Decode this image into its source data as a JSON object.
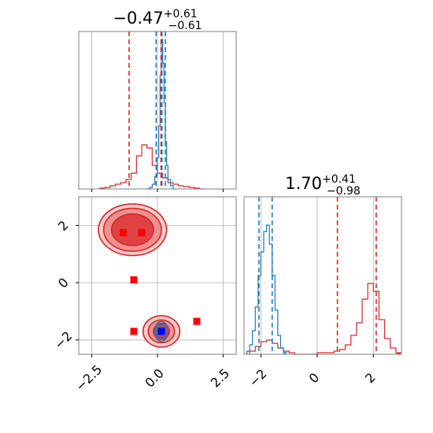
{
  "colors": {
    "series_a": "#d62728",
    "series_b": "#1f77b4",
    "grid": "#b0b0b0",
    "axes": "#7f7f7f"
  },
  "chart_data": [
    {
      "type": "line",
      "panel": "top-left",
      "title_main": "−0.47",
      "title_sup": "+0.61",
      "title_sub": "−0.61",
      "xlim": [
        -3.0,
        3.0
      ],
      "ylim": [
        0,
        1
      ],
      "grid": true,
      "xticks": [
        -2.5,
        0.0,
        2.5
      ],
      "xtick_labels_shown": false,
      "series": [
        {
          "color": "#d62728",
          "style": "step",
          "x": [
            -2.2,
            -2.0,
            -1.8,
            -1.6,
            -1.4,
            -1.2,
            -1.0,
            -0.8,
            -0.6,
            -0.4,
            -0.2,
            0.0,
            0.2,
            0.4,
            0.6,
            0.8,
            1.0,
            1.2,
            1.4,
            1.6
          ],
          "y": [
            0.005,
            0.01,
            0.02,
            0.03,
            0.04,
            0.06,
            0.1,
            0.21,
            0.28,
            0.26,
            0.15,
            0.1,
            0.07,
            0.04,
            0.03,
            0.02,
            0.015,
            0.01,
            0.005,
            0.0
          ]
        },
        {
          "color": "#1f77b4",
          "style": "step",
          "x": [
            -0.4,
            -0.3,
            -0.2,
            -0.1,
            0.0,
            0.05,
            0.1,
            0.15,
            0.2,
            0.25,
            0.3,
            0.35,
            0.4,
            0.5,
            0.6
          ],
          "y": [
            0.0,
            0.01,
            0.03,
            0.08,
            0.2,
            0.4,
            0.72,
            0.95,
            0.8,
            0.55,
            0.3,
            0.15,
            0.06,
            0.02,
            0.0
          ]
        }
      ],
      "vlines": [
        {
          "color": "#d62728",
          "x": [
            -1.08,
            0.14,
            0.14
          ]
        },
        {
          "color": "#1f77b4",
          "x": [
            -0.05,
            0.17,
            0.3
          ]
        }
      ]
    },
    {
      "type": "scatter",
      "panel": "bottom-left",
      "xlim": [
        -3.0,
        3.0
      ],
      "ylim": [
        -2.5,
        3.0
      ],
      "grid": true,
      "xticks": [
        -2.5,
        0.0,
        2.5
      ],
      "xtick_labels": [
        "−2.5",
        "0.0",
        "2.5"
      ],
      "yticks": [
        -2,
        0,
        2
      ],
      "ytick_labels": [
        "−2",
        "0",
        "2"
      ],
      "points": [
        {
          "color": "#ff0000",
          "marker": "square",
          "x": -1.3,
          "y": 1.75
        },
        {
          "color": "#ff0000",
          "marker": "square",
          "x": -0.6,
          "y": 1.75
        },
        {
          "color": "#ff0000",
          "marker": "square",
          "x": -0.9,
          "y": 0.1
        },
        {
          "color": "#ff0000",
          "marker": "square",
          "x": -0.9,
          "y": -1.7
        },
        {
          "color": "#ff0000",
          "marker": "square",
          "x": 1.5,
          "y": -1.35
        },
        {
          "color": "#0000ff",
          "marker": "square",
          "x": 0.15,
          "y": -1.7
        }
      ],
      "contours": [
        {
          "color": "#d62728",
          "cx": -0.95,
          "cy": 1.85,
          "levels": [
            [
              1.3,
              0.9
            ],
            [
              1.1,
              0.75
            ],
            [
              0.8,
              0.55
            ]
          ]
        },
        {
          "color": "#d62728",
          "cx": 0.15,
          "cy": -1.7,
          "levels": [
            [
              0.7,
              0.55
            ],
            [
              0.5,
              0.4
            ],
            [
              0.3,
              0.28
            ]
          ]
        },
        {
          "color": "#1f77b4",
          "cx": 0.15,
          "cy": -1.7,
          "levels": [
            [
              0.25,
              0.35
            ],
            [
              0.17,
              0.24
            ],
            [
              0.1,
              0.14
            ]
          ]
        }
      ]
    },
    {
      "type": "line",
      "panel": "bottom-right",
      "title_main": "1.70",
      "title_sup": "+0.41",
      "title_sub": "−0.98",
      "xlim": [
        -2.6,
        3.0
      ],
      "ylim": [
        0,
        1
      ],
      "grid": true,
      "xticks": [
        -2,
        0,
        2
      ],
      "xtick_labels": [
        "−2",
        "0",
        "2"
      ],
      "series": [
        {
          "color": "#d62728",
          "style": "step",
          "x": [
            -2.4,
            -2.2,
            -2.0,
            -1.8,
            -1.6,
            -1.4,
            -1.2,
            -1.0,
            -0.8,
            -0.6,
            -0.4,
            -0.2,
            0.0,
            0.2,
            0.4,
            0.6,
            0.8,
            1.0,
            1.2,
            1.4,
            1.6,
            1.8,
            2.0,
            2.2,
            2.4,
            2.6,
            2.8
          ],
          "y": [
            0.02,
            0.05,
            0.08,
            0.09,
            0.07,
            0.04,
            0.02,
            0.01,
            0.0,
            0.0,
            0.0,
            0.0,
            0.01,
            0.01,
            0.01,
            0.02,
            0.03,
            0.06,
            0.12,
            0.2,
            0.35,
            0.45,
            0.4,
            0.22,
            0.1,
            0.04,
            0.01
          ]
        },
        {
          "color": "#1f77b4",
          "style": "step",
          "x": [
            -2.5,
            -2.4,
            -2.3,
            -2.2,
            -2.1,
            -2.0,
            -1.9,
            -1.8,
            -1.7,
            -1.6,
            -1.5,
            -1.4,
            -1.3,
            -1.2
          ],
          "y": [
            0.02,
            0.06,
            0.15,
            0.3,
            0.5,
            0.65,
            0.78,
            0.82,
            0.7,
            0.5,
            0.28,
            0.12,
            0.04,
            0.01
          ]
        }
      ],
      "vlines": [
        {
          "color": "#d62728",
          "x": [
            0.72,
            2.1
          ]
        },
        {
          "color": "#1f77b4",
          "x": [
            -2.07,
            -1.6
          ]
        }
      ]
    }
  ]
}
